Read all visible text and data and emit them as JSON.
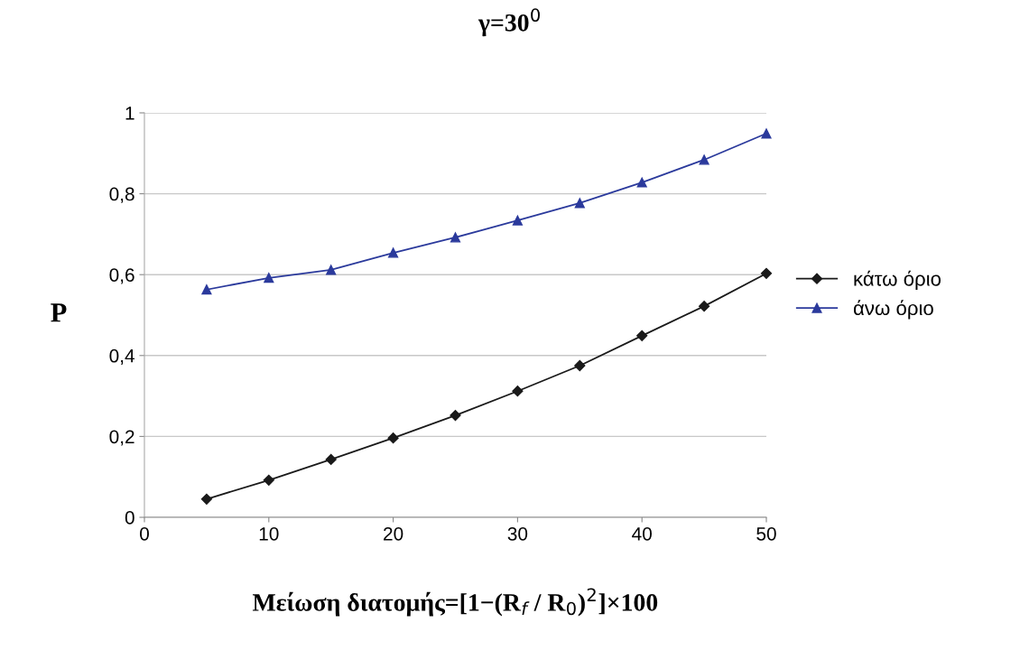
{
  "chart_data": {
    "type": "line",
    "title": "γ=30$^{0}$",
    "xlabel": "Μείωση διατομής=[1−(R$_{f}$ / R$_{0}$)$^{2}$]×100",
    "ylabel": "P",
    "x": [
      5,
      10,
      15,
      20,
      25,
      30,
      35,
      40,
      45,
      50
    ],
    "series": [
      {
        "name": "κάτω όριο",
        "color": "#1a1a1a",
        "marker": "diamond",
        "values": [
          0.045,
          0.092,
          0.143,
          0.196,
          0.252,
          0.312,
          0.375,
          0.449,
          0.522,
          0.603
        ]
      },
      {
        "name": "άνω όριο",
        "color": "#2b3a9c",
        "marker": "triangle",
        "values": [
          0.563,
          0.592,
          0.612,
          0.654,
          0.692,
          0.734,
          0.777,
          0.828,
          0.884,
          0.949
        ]
      }
    ],
    "xlim": [
      0,
      50
    ],
    "xticks": [
      0,
      10,
      20,
      30,
      40,
      50
    ],
    "ylim": [
      0,
      1
    ],
    "yticks": [
      0,
      {
        "value": 0.2,
        "label": "0,2"
      },
      {
        "value": 0.4,
        "label": "0,4"
      },
      {
        "value": 0.6,
        "label": "0,6"
      },
      {
        "value": 0.8,
        "label": "0,8"
      },
      1
    ],
    "grid": "y",
    "legend": "right",
    "line_style": "solid"
  }
}
